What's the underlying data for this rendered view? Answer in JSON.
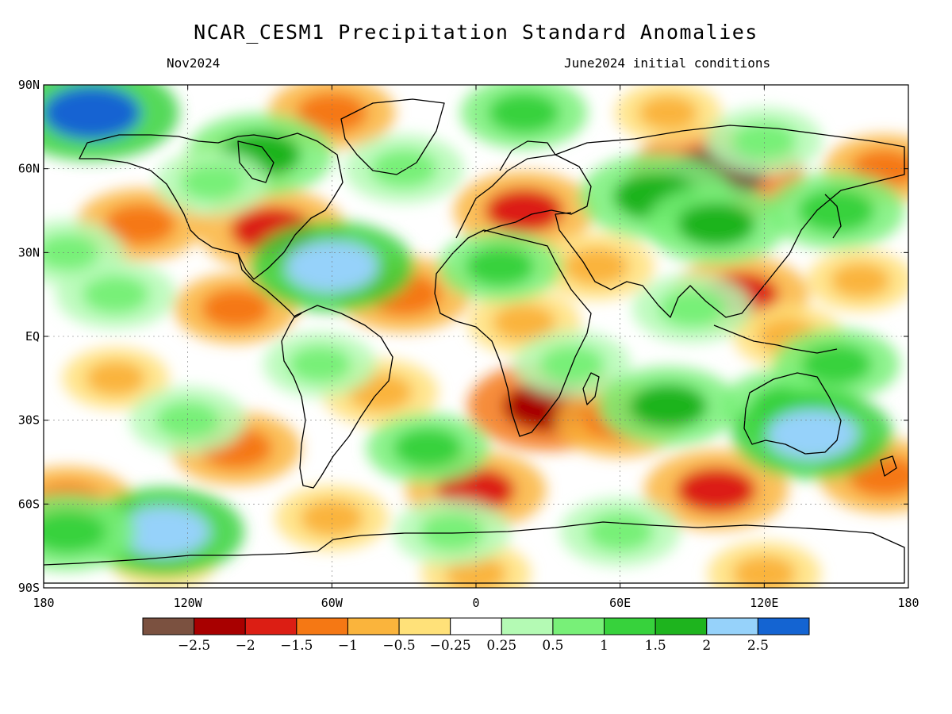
{
  "title": "NCAR_CESM1 Precipitation Standard Anomalies",
  "subtitle_left": "Nov2024",
  "subtitle_right": "June2024 initial conditions",
  "lat_labels": [
    "90N",
    "60N",
    "30N",
    "EQ",
    "30S",
    "60S",
    "90S"
  ],
  "lon_labels": [
    "180",
    "120W",
    "60W",
    "0",
    "60E",
    "120E",
    "180"
  ],
  "colorbar": {
    "colors": [
      "#7b5140",
      "#a80000",
      "#dc1e14",
      "#f57814",
      "#fab43c",
      "#ffe179",
      "#ffffff",
      "#b4fab4",
      "#78f078",
      "#37d23c",
      "#1eb41e",
      "#96d2fa",
      "#1464d2"
    ],
    "labels": [
      "-2.5",
      "-2",
      "-1.5",
      "-1",
      "-0.5",
      "-0.25",
      "0.25",
      "0.5",
      "1",
      "1.5",
      "2",
      "2.5"
    ]
  },
  "map_data": {
    "projection": "cylindrical-equidistant",
    "lon_range": [
      -180,
      180
    ],
    "lat_range": [
      -90,
      90
    ],
    "variable": "precipitation standard anomaly",
    "anomaly_regions": [
      {
        "lon": 20,
        "lat": 45,
        "value": -1.6
      },
      {
        "lon": -85,
        "lat": 38,
        "value": -1.8
      },
      {
        "lon": 100,
        "lat": 58,
        "value": -2.6
      },
      {
        "lon": 30,
        "lat": -25,
        "value": -2.2
      },
      {
        "lon": 110,
        "lat": 15,
        "value": -1.5
      },
      {
        "lon": -30,
        "lat": 15,
        "value": -1.4
      },
      {
        "lon": 20,
        "lat": 5,
        "value": -0.8
      },
      {
        "lon": 0,
        "lat": -55,
        "value": -1.6
      },
      {
        "lon": 100,
        "lat": -55,
        "value": -1.7
      },
      {
        "lon": -140,
        "lat": 40,
        "value": -1.2
      },
      {
        "lon": -150,
        "lat": -15,
        "value": -0.6
      },
      {
        "lon": 130,
        "lat": 0,
        "value": -0.7
      },
      {
        "lon": -100,
        "lat": -40,
        "value": -1.3
      },
      {
        "lon": -170,
        "lat": -60,
        "value": -1.4
      },
      {
        "lon": 60,
        "lat": -30,
        "value": -1.3
      },
      {
        "lon": -40,
        "lat": -20,
        "value": -0.9
      },
      {
        "lon": 80,
        "lat": 80,
        "value": -0.6
      },
      {
        "lon": -60,
        "lat": 80,
        "value": -1.2
      },
      {
        "lon": -100,
        "lat": 10,
        "value": -1.1
      },
      {
        "lon": 50,
        "lat": 25,
        "value": -0.9
      },
      {
        "lon": 0,
        "lat": -85,
        "value": -0.7
      },
      {
        "lon": 120,
        "lat": -85,
        "value": -0.8
      },
      {
        "lon": -130,
        "lat": -80,
        "value": -0.6
      },
      {
        "lon": -100,
        "lat": 60,
        "value": -0.8
      },
      {
        "lon": 170,
        "lat": 60,
        "value": -1.0
      },
      {
        "lon": 160,
        "lat": 20,
        "value": -0.6
      },
      {
        "lon": -60,
        "lat": -65,
        "value": -0.8
      },
      {
        "lon": 170,
        "lat": -50,
        "value": -1.3
      },
      {
        "lon": 40,
        "lat": -10,
        "value": 0.9
      },
      {
        "lon": 130,
        "lat": -25,
        "value": 1.4
      },
      {
        "lon": -160,
        "lat": 80,
        "value": 2.6
      },
      {
        "lon": -90,
        "lat": 65,
        "value": 1.8
      },
      {
        "lon": -60,
        "lat": 25,
        "value": 2.3
      },
      {
        "lon": 75,
        "lat": 50,
        "value": 2.0
      },
      {
        "lon": 100,
        "lat": 40,
        "value": 1.6
      },
      {
        "lon": -130,
        "lat": -70,
        "value": 2.2
      },
      {
        "lon": -170,
        "lat": -70,
        "value": 1.5
      },
      {
        "lon": 20,
        "lat": 80,
        "value": 1.2
      },
      {
        "lon": 10,
        "lat": 25,
        "value": 1.1
      },
      {
        "lon": -65,
        "lat": -10,
        "value": 0.8
      },
      {
        "lon": 80,
        "lat": -25,
        "value": 1.6
      },
      {
        "lon": -20,
        "lat": -40,
        "value": 1.1
      },
      {
        "lon": 150,
        "lat": -10,
        "value": 1.2
      },
      {
        "lon": 150,
        "lat": 45,
        "value": 1.5
      },
      {
        "lon": -150,
        "lat": 15,
        "value": 1.0
      },
      {
        "lon": 60,
        "lat": -70,
        "value": 1.0
      },
      {
        "lon": 90,
        "lat": 10,
        "value": 1.0
      },
      {
        "lon": -120,
        "lat": -30,
        "value": 0.9
      },
      {
        "lon": -170,
        "lat": 30,
        "value": 0.8
      },
      {
        "lon": -30,
        "lat": 60,
        "value": 1.0
      },
      {
        "lon": -10,
        "lat": -70,
        "value": 0.9
      },
      {
        "lon": 120,
        "lat": 70,
        "value": 0.9
      },
      {
        "lon": -110,
        "lat": 55,
        "value": 0.8
      },
      {
        "lon": 140,
        "lat": -35,
        "value": 2.2
      }
    ]
  }
}
